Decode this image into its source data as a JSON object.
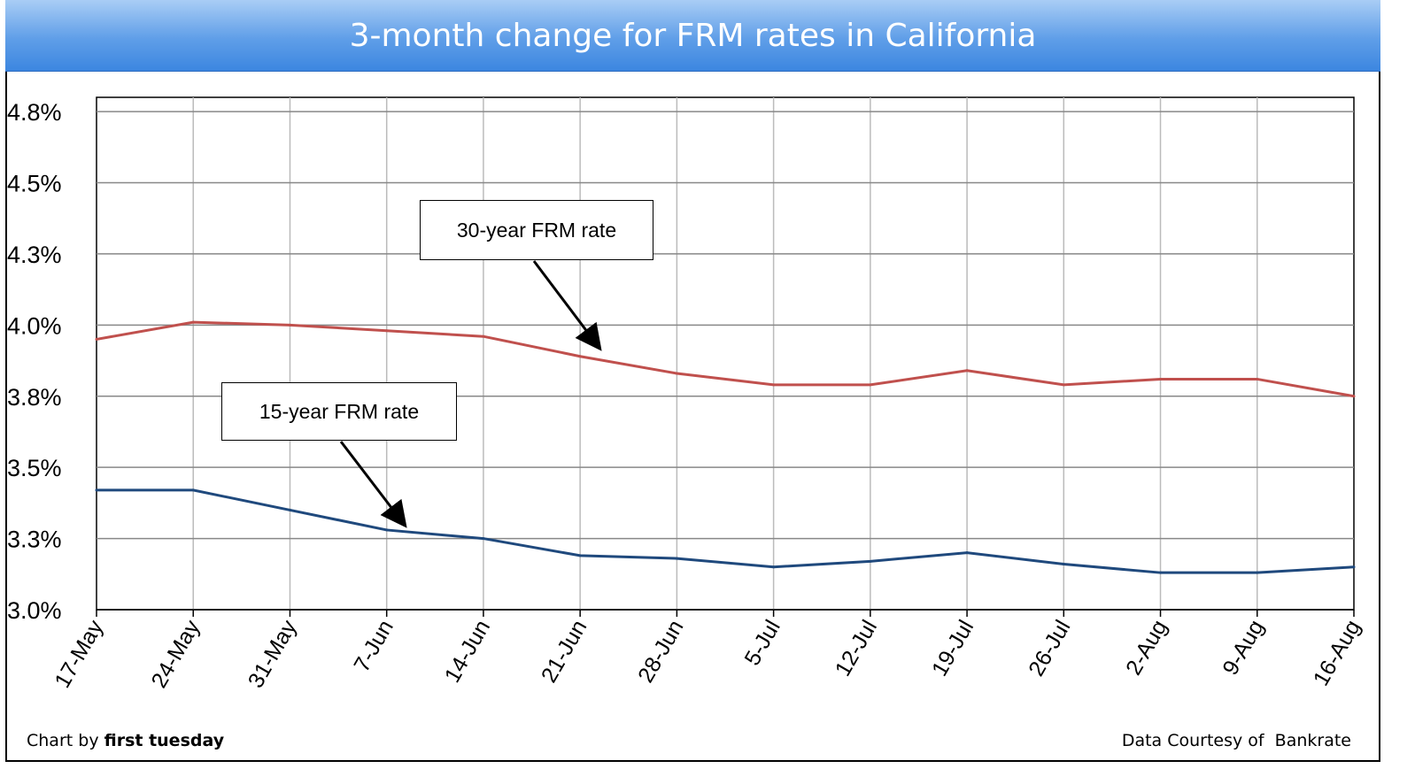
{
  "title": "3-month change for FRM rates in California",
  "footer": {
    "credit_prefix": "Chart by",
    "credit_name": "first tuesday",
    "source": "Data Courtesy of  Bankrate"
  },
  "chart_data": {
    "type": "line",
    "title": "3-month change for FRM rates in California",
    "xlabel": "",
    "ylabel": "",
    "categories": [
      "17-May",
      "24-May",
      "31-May",
      "7-Jun",
      "14-Jun",
      "21-Jun",
      "28-Jun",
      "5-Jul",
      "12-Jul",
      "19-Jul",
      "26-Jul",
      "2-Aug",
      "9-Aug",
      "16-Aug"
    ],
    "ylim": [
      3.0,
      4.8
    ],
    "yticks": [
      3.0,
      3.25,
      3.5,
      3.75,
      4.0,
      4.25,
      4.5,
      4.75
    ],
    "ytick_labels": [
      "3.0%",
      "3.3%",
      "3.5%",
      "3.8%",
      "4.0%",
      "4.3%",
      "4.5%",
      "4.8%"
    ],
    "grid": true,
    "series": [
      {
        "name": "30-year FRM rate",
        "color": "#c0504d",
        "values": [
          3.95,
          4.01,
          4.0,
          3.98,
          3.96,
          3.89,
          3.83,
          3.79,
          3.79,
          3.84,
          3.79,
          3.81,
          3.81,
          3.75
        ]
      },
      {
        "name": "15-year FRM rate",
        "color": "#1f497d",
        "values": [
          3.42,
          3.42,
          3.35,
          3.28,
          3.25,
          3.19,
          3.18,
          3.15,
          3.17,
          3.2,
          3.16,
          3.13,
          3.13,
          3.15
        ]
      }
    ],
    "annotations": [
      "30-year FRM rate",
      "15-year FRM rate"
    ]
  }
}
